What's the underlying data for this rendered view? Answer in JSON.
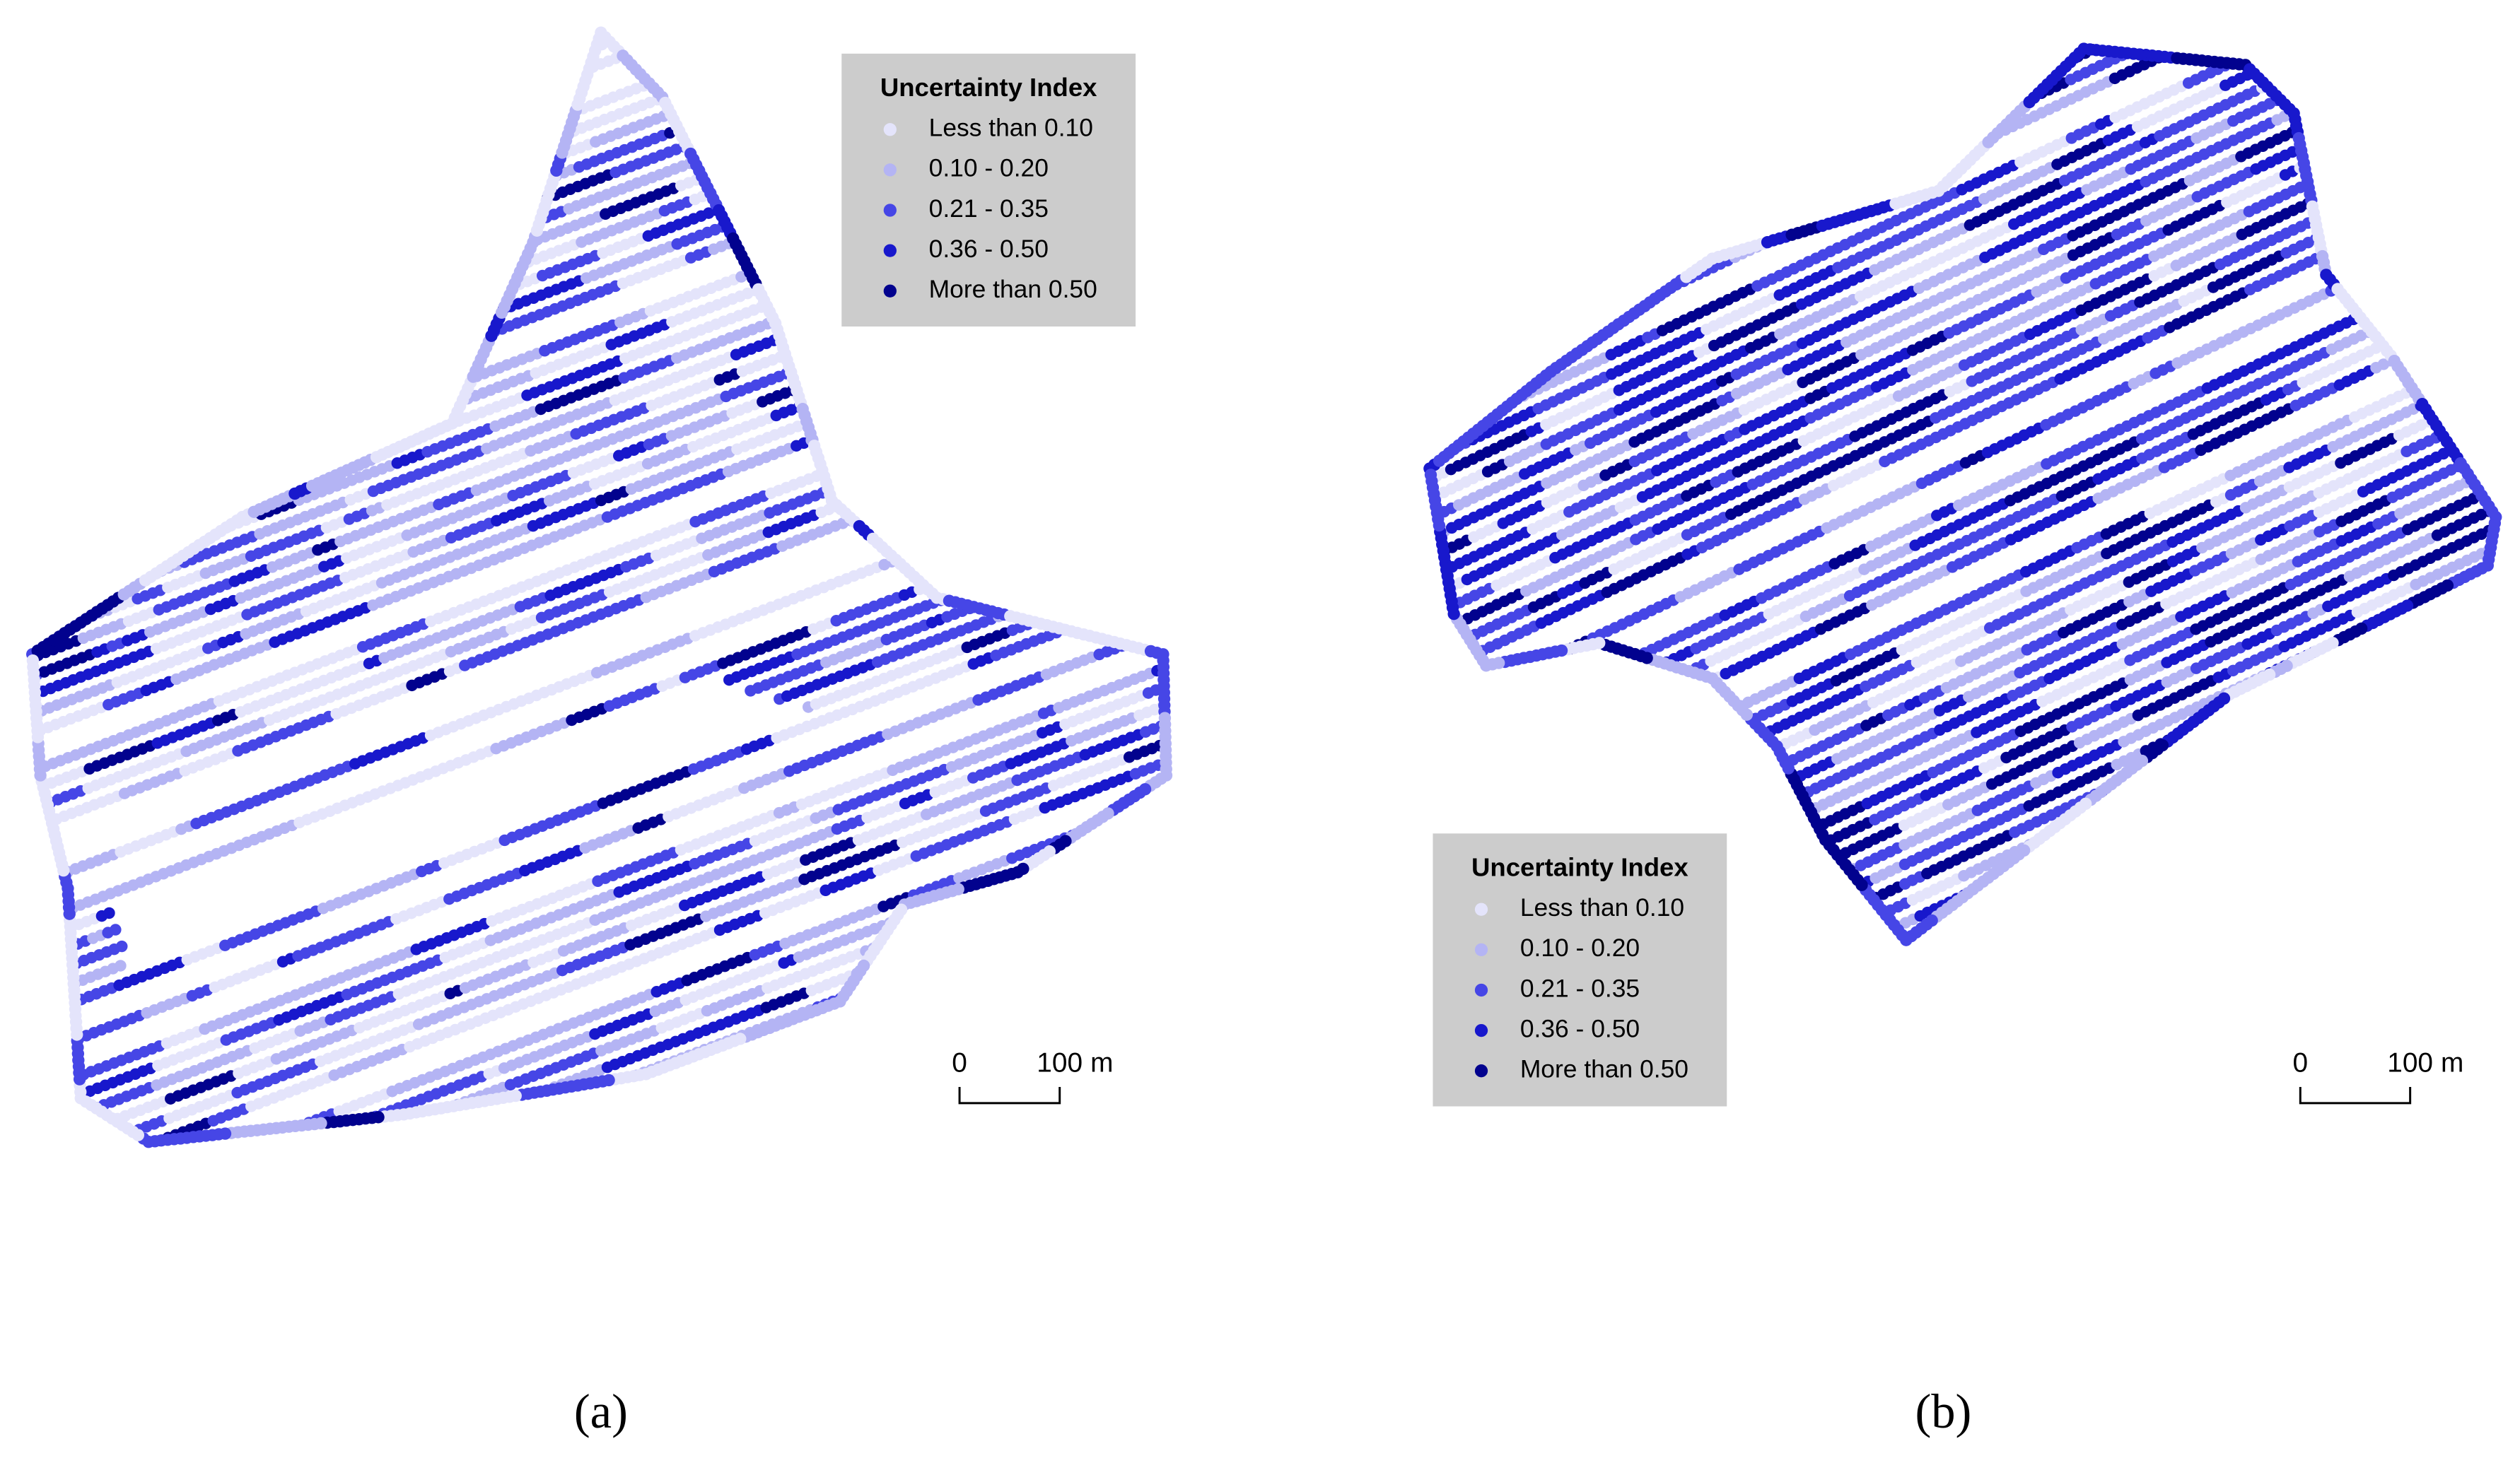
{
  "panels": [
    {
      "label": "(a)",
      "legend": {
        "title": "Uncertainty Index",
        "items": [
          {
            "label": "Less than 0.10",
            "color": "#e4e4fb"
          },
          {
            "label": "0.10 - 0.20",
            "color": "#b4b4f4"
          },
          {
            "label": "0.21 - 0.35",
            "color": "#4646e6"
          },
          {
            "label": "0.36 - 0.50",
            "color": "#1818cc"
          },
          {
            "label": "More than 0.50",
            "color": "#02028e"
          }
        ]
      },
      "scale_bar": {
        "ticks": [
          "0",
          "100"
        ],
        "unit": "m"
      }
    },
    {
      "label": "(b)",
      "legend": {
        "title": "Uncertainty Index",
        "items": [
          {
            "label": "Less than 0.10",
            "color": "#e4e4fb"
          },
          {
            "label": "0.10 - 0.20",
            "color": "#b4b4f4"
          },
          {
            "label": "0.21 - 0.35",
            "color": "#4646e6"
          },
          {
            "label": "0.36 - 0.50",
            "color": "#1818cc"
          },
          {
            "label": "More than 0.50",
            "color": "#02028e"
          }
        ]
      },
      "scale_bar": {
        "ticks": [
          "0",
          "100"
        ],
        "unit": "m"
      }
    }
  ]
}
